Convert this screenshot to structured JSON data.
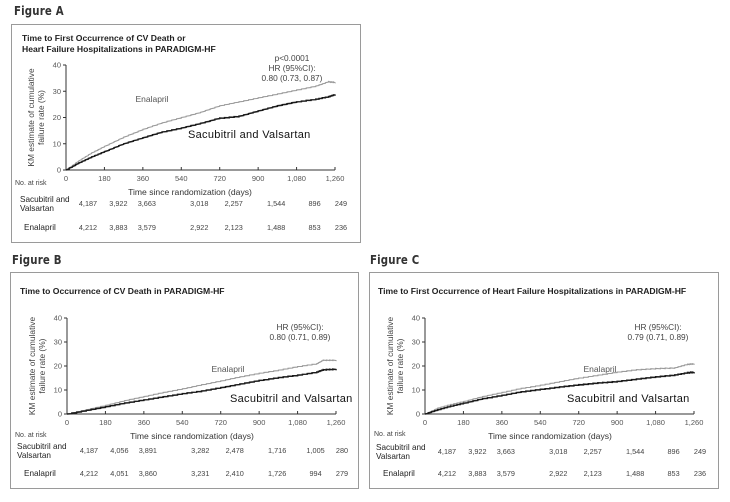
{
  "figures": [
    {
      "id": "A",
      "label": "Figure A",
      "title": "Time to First Occurrence of CV Death or\nHeart Failure Hospitalizations in PARADIGM-HF",
      "annotation_lines": [
        "p<0.0001",
        "HR (95%CI):",
        "0.80 (0.73, 0.87)"
      ],
      "ylabel_lines": [
        "KM estimate of cumulative",
        "failure rate (%)"
      ],
      "xlabel": "Time since randomization (days)",
      "series_labels": {
        "enalapril": "Enalapril",
        "sacubitril": "Sacubitril and Valsartan"
      },
      "risk_header": "No. at risk",
      "risk_rows": [
        {
          "name_lines": [
            "Sacubitril and",
            "Valsartan"
          ],
          "values": [
            "4,187",
            "3,922",
            "3,663",
            "3,018",
            "2,257",
            "1,544",
            "896",
            "249"
          ]
        },
        {
          "name_lines": [
            "Enalapril"
          ],
          "values": [
            "4,212",
            "3,883",
            "3,579",
            "2,922",
            "2,123",
            "1,488",
            "853",
            "236"
          ]
        }
      ]
    },
    {
      "id": "B",
      "label": "Figure B",
      "title": "Time to Occurrence of CV Death in PARADIGM-HF",
      "annotation_lines": [
        "HR (95%CI):",
        "0.80 (0.71, 0.89)"
      ],
      "ylabel_lines": [
        "KM estimate of cumulative",
        "failure rate (%)"
      ],
      "xlabel": "Time since randomization (days)",
      "series_labels": {
        "enalapril": "Enalapril",
        "sacubitril": "Sacubitril and Valsartan"
      },
      "risk_header": "No. at risk",
      "risk_rows": [
        {
          "name_lines": [
            "Sacubitril and",
            "Valsartan"
          ],
          "values": [
            "4,187",
            "4,056",
            "3,891",
            "3,282",
            "2,478",
            "1,716",
            "1,005",
            "280"
          ]
        },
        {
          "name_lines": [
            "Enalapril"
          ],
          "values": [
            "4,212",
            "4,051",
            "3,860",
            "3,231",
            "2,410",
            "1,726",
            "994",
            "279"
          ]
        }
      ]
    },
    {
      "id": "C",
      "label": "Figure C",
      "title": "Time to First Occurrence of Heart Failure Hospitalizations in PARADIGM-HF",
      "annotation_lines": [
        "HR (95%CI):",
        "0.79 (0.71, 0.89)"
      ],
      "ylabel_lines": [
        "KM estimate of cumulative",
        "failure rate (%)"
      ],
      "xlabel": "Time since randomization (days)",
      "series_labels": {
        "enalapril": "Enalapril",
        "sacubitril": "Sacubitril and Valsartan"
      },
      "risk_header": "No. at risk",
      "risk_rows": [
        {
          "name_lines": [
            "Sacubitril and",
            "Valsartan"
          ],
          "values": [
            "4,187",
            "3,922",
            "3,663",
            "3,018",
            "2,257",
            "1,544",
            "896",
            "249"
          ]
        },
        {
          "name_lines": [
            "Enalapril"
          ],
          "values": [
            "4,212",
            "3,883",
            "3,579",
            "2,922",
            "2,123",
            "1,488",
            "853",
            "236"
          ]
        }
      ]
    }
  ],
  "chart_data": [
    {
      "type": "line",
      "title": "Time to First Occurrence of CV Death or Heart Failure Hospitalizations in PARADIGM-HF",
      "xlabel": "Time since randomization (days)",
      "ylabel": "KM estimate of cumulative failure rate (%)",
      "xlim": [
        0,
        1260
      ],
      "ylim": [
        0,
        40
      ],
      "xticks": [
        0,
        180,
        360,
        540,
        720,
        900,
        1080,
        1260
      ],
      "xtick_labels": [
        "0",
        "180",
        "360",
        "540",
        "720",
        "900",
        "1,080",
        "1,260"
      ],
      "yticks": [
        0,
        10,
        20,
        30,
        40
      ],
      "ytick_labels": [
        "0",
        "10",
        "20",
        "30",
        "40"
      ],
      "grid": false,
      "x": [
        0,
        60,
        120,
        180,
        270,
        360,
        450,
        540,
        630,
        720,
        810,
        900,
        990,
        1080,
        1170,
        1230,
        1260
      ],
      "series": [
        {
          "name": "Enalapril",
          "color": "#9a9a9a",
          "values": [
            0,
            3.5,
            6.5,
            9,
            12.5,
            15.5,
            18,
            20,
            22,
            24.5,
            26,
            27.5,
            29,
            30.5,
            32,
            33.7,
            33.5
          ]
        },
        {
          "name": "Sacubitril and Valsartan",
          "color": "#1a1a1a",
          "values": [
            0,
            2.7,
            5,
            7,
            10,
            12.3,
            14.5,
            16,
            17.8,
            19.8,
            20.5,
            22.5,
            24.5,
            26,
            27,
            28,
            28.8
          ]
        }
      ]
    },
    {
      "type": "line",
      "title": "Time to Occurrence of CV Death in PARADIGM-HF",
      "xlabel": "Time since randomization (days)",
      "ylabel": "KM estimate of cumulative failure rate (%)",
      "xlim": [
        0,
        1260
      ],
      "ylim": [
        0,
        40
      ],
      "xticks": [
        0,
        180,
        360,
        540,
        720,
        900,
        1080,
        1260
      ],
      "xtick_labels": [
        "0",
        "180",
        "360",
        "540",
        "720",
        "900",
        "1,080",
        "1,260"
      ],
      "yticks": [
        0,
        10,
        20,
        30,
        40
      ],
      "ytick_labels": [
        "0",
        "10",
        "20",
        "30",
        "40"
      ],
      "grid": false,
      "x": [
        0,
        90,
        180,
        270,
        360,
        450,
        540,
        630,
        720,
        810,
        900,
        990,
        1080,
        1170,
        1200,
        1260
      ],
      "series": [
        {
          "name": "Enalapril",
          "color": "#9a9a9a",
          "values": [
            0,
            1.8,
            3.6,
            5.6,
            7.3,
            9,
            10.5,
            12.2,
            13.8,
            15.5,
            17,
            18.3,
            19.8,
            21,
            22.5,
            22.5
          ]
        },
        {
          "name": "Sacubitril and Valsartan",
          "color": "#1a1a1a",
          "values": [
            0,
            1.5,
            3,
            4.6,
            5.9,
            7.2,
            8.5,
            9.6,
            11,
            12.5,
            14,
            15.2,
            16.2,
            17.5,
            18.5,
            18.8
          ]
        }
      ]
    },
    {
      "type": "line",
      "title": "Time to First Occurrence of Heart Failure Hospitalizations in PARADIGM-HF",
      "xlabel": "Time since randomization (days)",
      "ylabel": "KM estimate of cumulative failure rate (%)",
      "xlim": [
        0,
        1260
      ],
      "ylim": [
        0,
        40
      ],
      "xticks": [
        0,
        180,
        360,
        540,
        720,
        900,
        1080,
        1260
      ],
      "xtick_labels": [
        "0",
        "180",
        "360",
        "540",
        "720",
        "900",
        "1,080",
        "1,260"
      ],
      "yticks": [
        0,
        10,
        20,
        30,
        40
      ],
      "ytick_labels": [
        "0",
        "10",
        "20",
        "30",
        "40"
      ],
      "grid": false,
      "x": [
        0,
        60,
        120,
        180,
        270,
        360,
        450,
        540,
        630,
        720,
        810,
        900,
        990,
        1080,
        1170,
        1230,
        1260
      ],
      "series": [
        {
          "name": "Enalapril",
          "color": "#9a9a9a",
          "values": [
            0,
            2.5,
            4,
            5.2,
            7.3,
            9,
            10.7,
            12,
            13.5,
            15,
            16.2,
            17.5,
            18.5,
            19,
            19.3,
            20.8,
            21
          ]
        },
        {
          "name": "Sacubitril and Valsartan",
          "color": "#1a1a1a",
          "values": [
            0,
            1.8,
            3.3,
            4.5,
            6.4,
            7.8,
            9.3,
            10.3,
            11.3,
            12.2,
            13,
            13.6,
            14.6,
            15.5,
            16.3,
            17.3,
            17.5
          ]
        }
      ]
    }
  ]
}
